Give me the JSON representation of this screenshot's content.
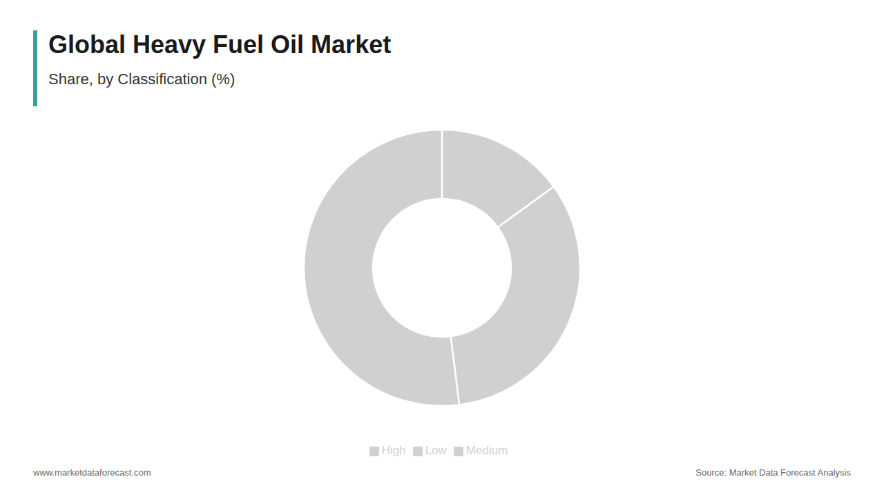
{
  "chart_data": {
    "type": "donut",
    "title": "Global Heavy Fuel Oil Market",
    "subtitle": "Share, by Classification (%)",
    "categories": [
      "Low",
      "Medium",
      "High"
    ],
    "values": [
      15,
      33,
      52
    ],
    "color": "#d0d0d0",
    "legend": "bottom",
    "annotations": [
      "www.marketdataforecast.com",
      "Source: Market Data Forecast Analysis"
    ]
  }
}
